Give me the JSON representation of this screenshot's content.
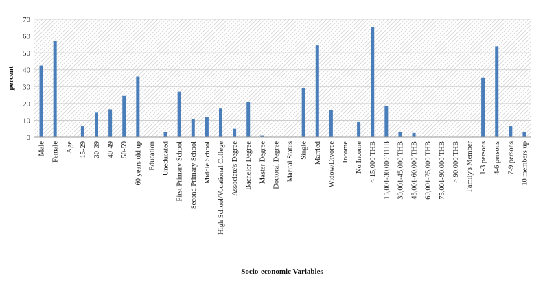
{
  "chart_data": {
    "type": "bar",
    "xlabel": "Socio-economic Variables",
    "ylabel": "percent",
    "ylim": [
      0,
      70
    ],
    "yticks": [
      0,
      10,
      20,
      30,
      40,
      50,
      60,
      70
    ],
    "grid": true,
    "bar_color": "#4A7EBB",
    "categories": [
      "Male",
      "Female",
      "Age",
      "15-29",
      "30-39",
      "40-49",
      "50-59",
      "60 years old up",
      "Education",
      "Uneducated",
      "First Primary School",
      "Second Primary School",
      "Middle School",
      "High School/Vocational College",
      "Associate's Degree",
      "Bachelor Degree",
      "Master Degree",
      "Doctoral Degree",
      "Marital Status",
      "Single",
      "Married",
      "Widow/Divorce",
      "Income",
      "No Income",
      "< 15,000 THB",
      "15,001-30,000 THB",
      "30,001-45,000 THB",
      "45,001-60,000 THB",
      "60,001-75,000 THB",
      "75,001-90,000 THB",
      "> 90,000 THB",
      "Family's Member",
      "1-3 persons",
      "4-6 persons",
      "7-9 persons",
      "10 members up"
    ],
    "values": [
      42.5,
      57,
      0,
      6.5,
      14.5,
      16.5,
      24.5,
      36,
      0,
      3,
      27,
      11,
      12,
      17,
      5,
      21,
      1,
      0,
      0,
      29,
      54.5,
      16,
      0,
      9,
      65.5,
      18.5,
      3,
      2.5,
      0,
      0,
      0,
      0,
      35.5,
      54,
      6.5,
      3
    ]
  }
}
